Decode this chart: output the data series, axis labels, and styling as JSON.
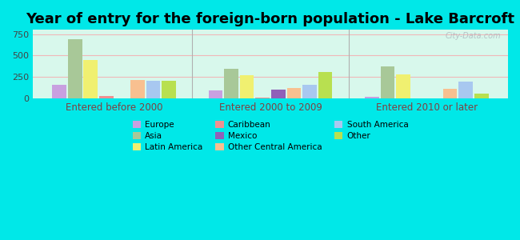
{
  "title": "Year of entry for the foreign-born population - Lake Barcroft",
  "groups": [
    "Entered before 2000",
    "Entered 2000 to 2009",
    "Entered 2010 or later"
  ],
  "series": {
    "Europe": [
      160,
      90,
      20
    ],
    "Asia": [
      690,
      340,
      370
    ],
    "Latin America": [
      450,
      265,
      280
    ],
    "Caribbean": [
      25,
      10,
      0
    ],
    "Mexico": [
      0,
      100,
      0
    ],
    "Other Central America": [
      215,
      115,
      110
    ],
    "South America": [
      205,
      155,
      190
    ],
    "Other": [
      205,
      305,
      55
    ]
  },
  "colors": {
    "Europe": "#c8a0e0",
    "Asia": "#a8c898",
    "Latin America": "#f0f070",
    "Caribbean": "#f09090",
    "Mexico": "#9060b8",
    "Other Central America": "#f8c090",
    "South America": "#a8c8f0",
    "Other": "#b8e050"
  },
  "bar_order": [
    "Europe",
    "Asia",
    "Latin America",
    "Caribbean",
    "Mexico",
    "Other Central America",
    "South America",
    "Other"
  ],
  "legend_order": [
    "Europe",
    "Asia",
    "Latin America",
    "Caribbean",
    "Mexico",
    "Other Central America",
    "South America",
    "Other"
  ],
  "ylim": [
    0,
    800
  ],
  "yticks": [
    0,
    250,
    500,
    750
  ],
  "outer_bg": "#00e8e8",
  "plot_bg": "#d8f8ec",
  "grid_color": "#f0b8b8",
  "title_fontsize": 13,
  "watermark": "City-Data.com"
}
